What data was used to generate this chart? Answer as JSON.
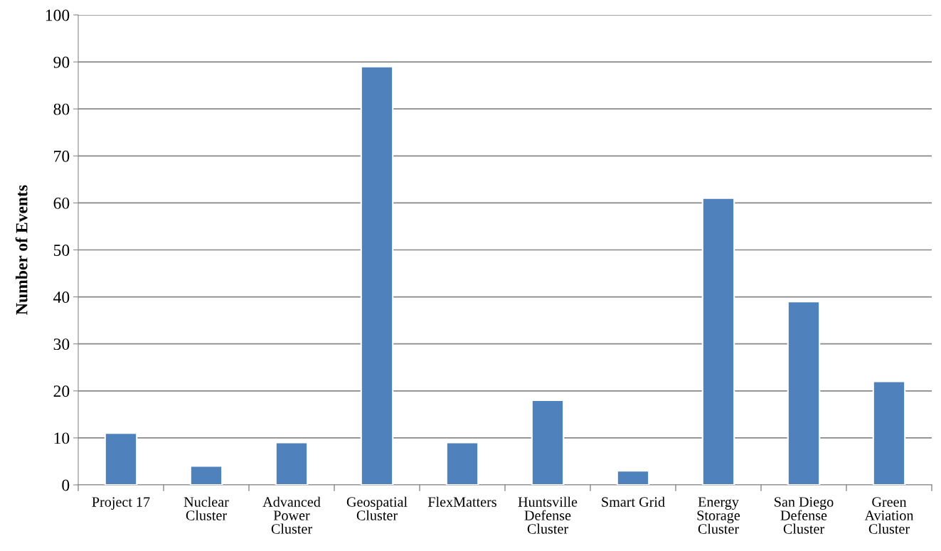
{
  "chart_data": {
    "type": "bar",
    "ylabel": "Number of Events",
    "categories": [
      "Project 17",
      "Nuclear\nCluster",
      "Advanced\nPower\nCluster",
      "Geospatial\nCluster",
      "FlexMatters",
      "Huntsville\nDefense\nCluster",
      "Smart Grid",
      "Energy\nStorage\nCluster",
      "San Diego\nDefense\nCluster",
      "Green\nAviation\nCluster"
    ],
    "values": [
      11,
      4,
      9,
      89,
      9,
      18,
      3,
      61,
      39,
      22
    ],
    "color": "#4f81bd",
    "ylim": [
      0,
      100
    ],
    "yticks": [
      0,
      10,
      20,
      30,
      40,
      50,
      60,
      70,
      80,
      90,
      100
    ],
    "grid": "y"
  }
}
